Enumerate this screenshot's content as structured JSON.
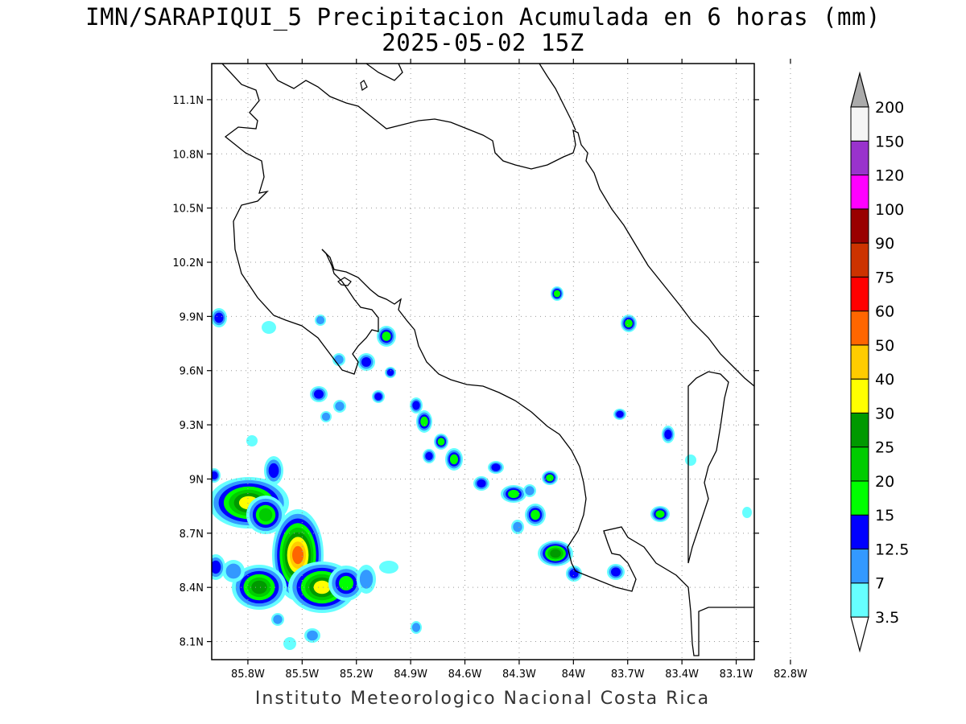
{
  "title": {
    "line1": "IMN/SARAPIQUI_5 Precipitacion Acumulada en 6 horas (mm)",
    "line2": "2025-05-02 15Z"
  },
  "credit": "Instituto Meteorologico Nacional Costa Rica",
  "map": {
    "lon_range": [
      -86.0,
      -83.0
    ],
    "lat_range": [
      8.0,
      11.3
    ],
    "projection": "lat-lon",
    "grid": true,
    "lat_ticks": [
      {
        "value": 11.1,
        "label": "11.1N"
      },
      {
        "value": 10.8,
        "label": "10.8N"
      },
      {
        "value": 10.5,
        "label": "10.5N"
      },
      {
        "value": 10.2,
        "label": "10.2N"
      },
      {
        "value": 9.9,
        "label": "9.9N"
      },
      {
        "value": 9.6,
        "label": "9.6N"
      },
      {
        "value": 9.3,
        "label": "9.3N"
      },
      {
        "value": 9.0,
        "label": "9N"
      },
      {
        "value": 8.7,
        "label": "8.7N"
      },
      {
        "value": 8.4,
        "label": "8.4N"
      },
      {
        "value": 8.1,
        "label": "8.1N"
      }
    ],
    "lon_ticks": [
      {
        "value": -85.8,
        "label": "85.8W"
      },
      {
        "value": -85.5,
        "label": "85.5W"
      },
      {
        "value": -85.2,
        "label": "85.2W"
      },
      {
        "value": -84.9,
        "label": "84.9W"
      },
      {
        "value": -84.6,
        "label": "84.6W"
      },
      {
        "value": -84.3,
        "label": "84.3W"
      },
      {
        "value": -84.0,
        "label": "84W"
      },
      {
        "value": -83.7,
        "label": "83.7W"
      },
      {
        "value": -83.4,
        "label": "83.4W"
      },
      {
        "value": -83.1,
        "label": "83.1W"
      },
      {
        "value": -82.8,
        "label": "82.8W"
      }
    ]
  },
  "legend": {
    "levels": [
      {
        "label": "3.5",
        "color": "#66ffff"
      },
      {
        "label": "7",
        "color": "#3399ff"
      },
      {
        "label": "12.5",
        "color": "#0000ff"
      },
      {
        "label": "15",
        "color": "#00ff00"
      },
      {
        "label": "20",
        "color": "#00cc00"
      },
      {
        "label": "25",
        "color": "#009900"
      },
      {
        "label": "30",
        "color": "#ffff00"
      },
      {
        "label": "40",
        "color": "#ffcc00"
      },
      {
        "label": "50",
        "color": "#ff6600"
      },
      {
        "label": "60",
        "color": "#ff0000"
      },
      {
        "label": "75",
        "color": "#cc3300"
      },
      {
        "label": "90",
        "color": "#990000"
      },
      {
        "label": "100",
        "color": "#ff00ff"
      },
      {
        "label": "120",
        "color": "#9933cc"
      },
      {
        "label": "150",
        "color": "#f5f5f5"
      },
      {
        "label": "200",
        "color": "#aaaaaa"
      }
    ]
  },
  "colors": {
    "background": "#ffffff",
    "grid": "#999999",
    "coastline": "#000000"
  }
}
